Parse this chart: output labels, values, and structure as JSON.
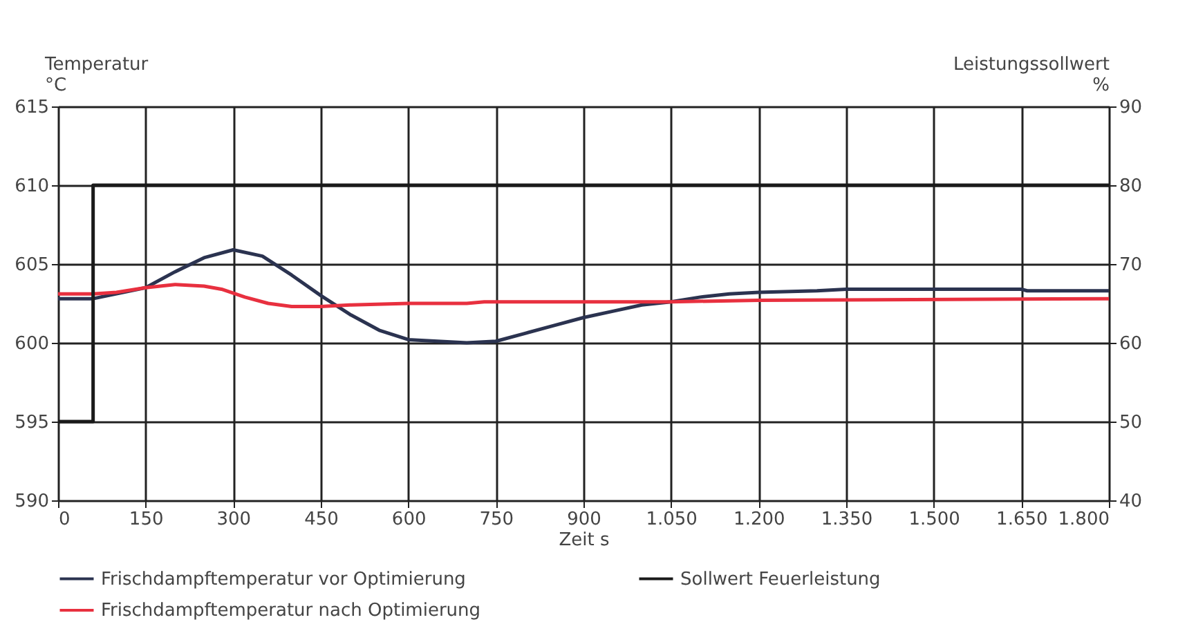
{
  "chart_data": {
    "type": "line",
    "xlabel": "Zeit   s",
    "ylabel": "Temperatur °C",
    "y2label": "Leistungssollwert %",
    "xlim": [
      0,
      1800
    ],
    "xticks": [
      0,
      150,
      300,
      450,
      600,
      750,
      900,
      {
        "value": 1050,
        "label": "1.050"
      },
      {
        "value": 1200,
        "label": "1.200"
      },
      {
        "value": 1350,
        "label": "1.350"
      },
      {
        "value": 1500,
        "label": "1.500"
      },
      {
        "value": 1650,
        "label": "1.650"
      },
      {
        "value": 1800,
        "label": "1.800"
      }
    ],
    "ylim": [
      590,
      615
    ],
    "yticks": [
      590,
      595,
      600,
      605,
      610,
      615
    ],
    "y2lim": [
      40,
      90
    ],
    "y2ticks": [
      40,
      50,
      60,
      70,
      80,
      90
    ],
    "grid": true,
    "legend": "bottom",
    "line_style": "solid",
    "marker": "none",
    "series": [
      {
        "name": "Frischdampftemperatur vor Optimierung",
        "color": "#2b3350",
        "x": [
          0,
          60,
          150,
          200,
          250,
          300,
          350,
          400,
          450,
          500,
          550,
          600,
          650,
          700,
          750,
          800,
          850,
          900,
          950,
          1000,
          1050,
          1100,
          1150,
          1200,
          1300,
          1350,
          1500,
          1650,
          1660,
          1800
        ],
        "values": [
          602.8,
          602.8,
          603.5,
          604.5,
          605.4,
          605.9,
          605.5,
          604.3,
          603.0,
          601.8,
          600.8,
          600.2,
          600.1,
          600.0,
          600.1,
          600.6,
          601.1,
          601.6,
          602.0,
          602.4,
          602.6,
          602.9,
          603.1,
          603.2,
          603.3,
          603.4,
          603.4,
          603.4,
          603.3,
          603.3
        ]
      },
      {
        "name": "Sollwert Feuerleistung",
        "color": "#1a1a1a",
        "type": "step",
        "axis": "y2",
        "x": [
          0,
          60,
          1800
        ],
        "values": [
          50,
          80,
          80
        ]
      },
      {
        "name": "Frischdampftemperatur nach Optimierung",
        "color": "#e8303f",
        "x": [
          0,
          60,
          100,
          150,
          200,
          250,
          280,
          320,
          360,
          400,
          450,
          500,
          600,
          700,
          730,
          900,
          1050,
          1200,
          1800
        ],
        "values": [
          603.1,
          603.1,
          603.2,
          603.5,
          603.7,
          603.6,
          603.4,
          602.9,
          602.5,
          602.3,
          602.3,
          602.4,
          602.5,
          602.5,
          602.6,
          602.6,
          602.6,
          602.7,
          602.8
        ]
      }
    ]
  }
}
